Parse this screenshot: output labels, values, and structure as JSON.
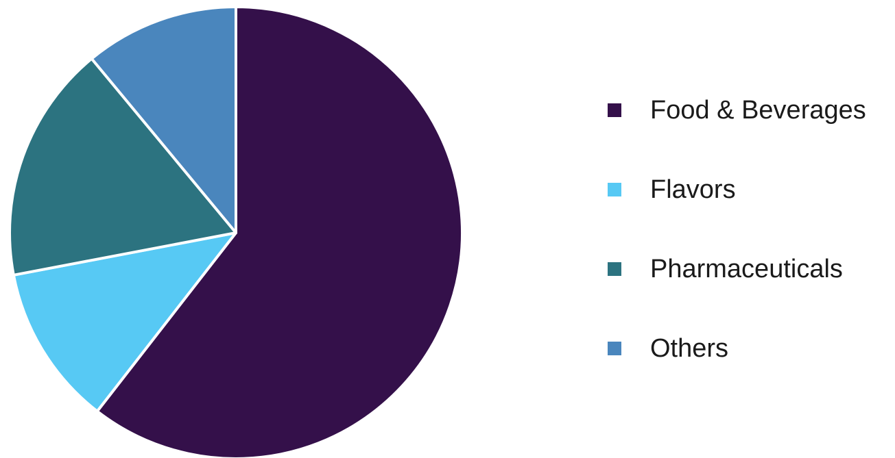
{
  "chart_data": {
    "type": "pie",
    "title": "",
    "start_angle_deg": 0,
    "direction": "clockwise",
    "slices": [
      {
        "label": "Food & Beverages",
        "value": 60.5,
        "color": "#34104a"
      },
      {
        "label": "Flavors",
        "value": 11.5,
        "color": "#57c9f4"
      },
      {
        "label": "Pharmaceuticals",
        "value": 17,
        "color": "#2c7380"
      },
      {
        "label": "Others",
        "value": 11,
        "color": "#4a86bd"
      }
    ],
    "legend": {
      "position": "right",
      "items": [
        "Food & Beverages",
        "Flavors",
        "Pharmaceuticals",
        "Others"
      ]
    }
  }
}
